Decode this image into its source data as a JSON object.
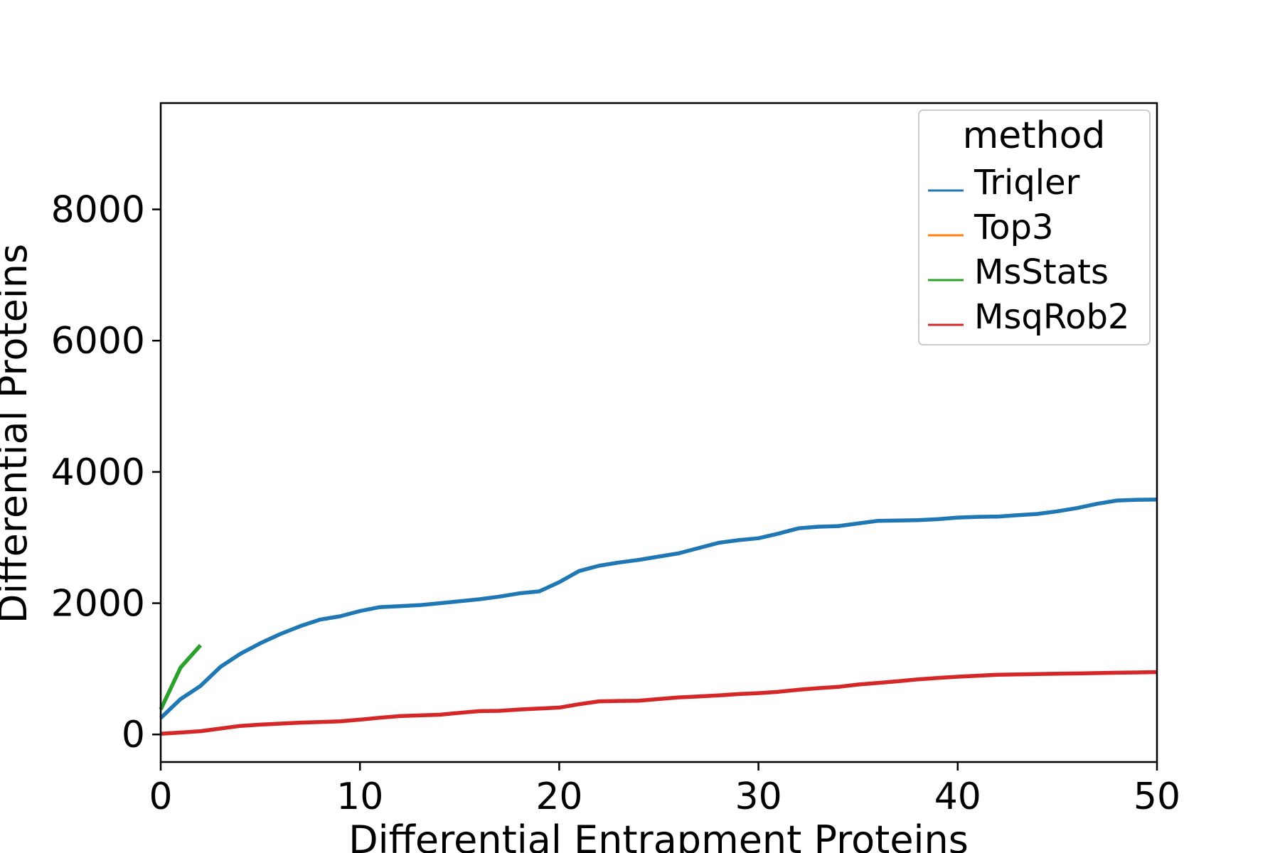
{
  "chart_data": {
    "type": "line",
    "title": "",
    "xlabel": "Differential Entrapment Proteins",
    "ylabel": "Differential Proteins",
    "xlim": [
      0,
      50
    ],
    "ylim": [
      -420,
      9620
    ],
    "xticks": [
      0,
      10,
      20,
      30,
      40,
      50
    ],
    "yticks": [
      0,
      2000,
      4000,
      6000,
      8000
    ],
    "grid": false,
    "legend": {
      "title": "method",
      "position": "top-right"
    },
    "series": [
      {
        "name": "Triqler",
        "color": "#1f77b4",
        "x": [
          0,
          1,
          2,
          3,
          4,
          5,
          6,
          7,
          8,
          9,
          10,
          11,
          12,
          13,
          14,
          15,
          16,
          17,
          18,
          19,
          20,
          21,
          22,
          23,
          24,
          25,
          26,
          27,
          28,
          29,
          30,
          31,
          32,
          33,
          34,
          35,
          36,
          37,
          38,
          39,
          40,
          41,
          42,
          43,
          44,
          45,
          46,
          47,
          48,
          49,
          50
        ],
        "y": [
          250,
          540,
          740,
          1030,
          1230,
          1390,
          1530,
          1650,
          1750,
          1800,
          1880,
          1940,
          1955,
          1970,
          2000,
          2030,
          2060,
          2100,
          2150,
          2180,
          2320,
          2490,
          2570,
          2620,
          2660,
          2710,
          2760,
          2840,
          2920,
          2960,
          2990,
          3060,
          3140,
          3165,
          3175,
          3215,
          3255,
          3260,
          3265,
          3280,
          3305,
          3315,
          3320,
          3340,
          3360,
          3400,
          3450,
          3515,
          3565,
          3575,
          3580
        ]
      },
      {
        "name": "Top3",
        "color": "#ff7f0e",
        "x": [],
        "y": []
      },
      {
        "name": "MsStats",
        "color": "#2ca02c",
        "x": [
          0,
          1,
          2
        ],
        "y": [
          380,
          1020,
          1360
        ]
      },
      {
        "name": "MsqRob2",
        "color": "#d62728",
        "x": [
          0,
          1,
          2,
          3,
          4,
          5,
          6,
          7,
          8,
          9,
          10,
          11,
          12,
          13,
          14,
          15,
          16,
          17,
          18,
          19,
          20,
          21,
          22,
          23,
          24,
          25,
          26,
          27,
          28,
          29,
          30,
          31,
          32,
          33,
          34,
          35,
          36,
          37,
          38,
          39,
          40,
          41,
          42,
          43,
          44,
          45,
          46,
          47,
          48,
          49,
          50
        ],
        "y": [
          10,
          30,
          50,
          90,
          130,
          150,
          165,
          180,
          190,
          200,
          225,
          255,
          280,
          290,
          300,
          330,
          355,
          360,
          380,
          395,
          410,
          460,
          505,
          510,
          515,
          540,
          565,
          580,
          595,
          615,
          630,
          650,
          680,
          705,
          725,
          760,
          785,
          810,
          840,
          860,
          880,
          895,
          910,
          915,
          920,
          925,
          930,
          935,
          940,
          945,
          950
        ]
      }
    ]
  }
}
